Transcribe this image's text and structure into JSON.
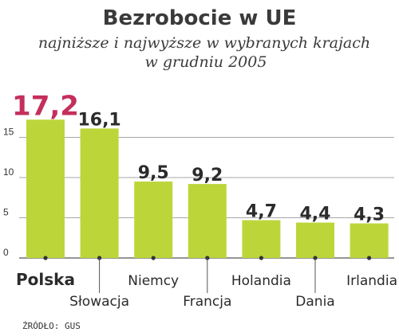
{
  "chart_data": {
    "type": "bar",
    "title": "Bezrobocie w UE",
    "subtitle_line1": "najniższe i najwyższe w wybranych krajach",
    "subtitle_line2": "w grudniu 2005",
    "categories": [
      "Polska",
      "Słowacja",
      "Niemcy",
      "Francja",
      "Holandia",
      "Dania",
      "Irlandia"
    ],
    "values": [
      17.2,
      16.1,
      9.5,
      9.2,
      4.7,
      4.4,
      4.3
    ],
    "value_labels": [
      "17,2",
      "16,1",
      "9,5",
      "9,2",
      "4,7",
      "4,4",
      "4,3"
    ],
    "highlight_index": 0,
    "yticks": [
      0,
      5,
      10,
      15
    ],
    "ylim": [
      0,
      17.5
    ],
    "grid": true,
    "source": "ŹRÓDŁO: GUS",
    "colors": {
      "bar": "#bcd63a",
      "highlight_text": "#c42f5c",
      "grid": "#8a8a8a",
      "text": "#2b2b2b"
    }
  }
}
